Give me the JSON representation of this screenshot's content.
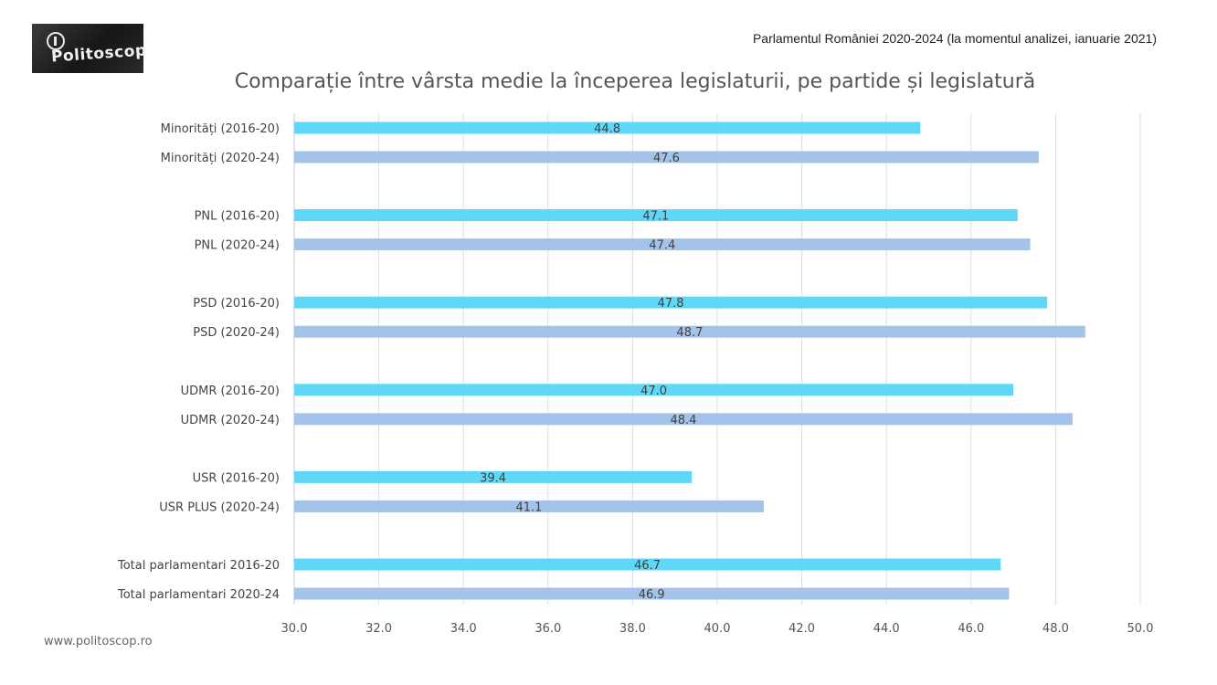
{
  "header": {
    "logo_text": "Politoscop",
    "source": "Parlamentul României 2020-2024 (la momentul analizei, ianuarie 2021)"
  },
  "footer": {
    "website": "www.politoscop.ro"
  },
  "chart_data": {
    "type": "bar",
    "orientation": "horizontal",
    "title": "Comparație între vârsta medie la începerea legislaturii, pe partide și legislatură",
    "xlabel": "",
    "ylabel": "",
    "xlim": [
      30,
      50
    ],
    "x_ticks": [
      "30.0",
      "32.0",
      "34.0",
      "36.0",
      "38.0",
      "40.0",
      "42.0",
      "44.0",
      "46.0",
      "48.0",
      "50.0"
    ],
    "grid": "vertical",
    "legend": "none",
    "colors": {
      "2016-20": "#5fd7f7",
      "2020-24": "#a3c4e8"
    },
    "groups": [
      {
        "bars": [
          {
            "label": "Minorități (2016-20)",
            "value": 44.8,
            "period": "2016-20"
          },
          {
            "label": "Minorități (2020-24)",
            "value": 47.6,
            "period": "2020-24"
          }
        ]
      },
      {
        "bars": [
          {
            "label": "PNL (2016-20)",
            "value": 47.1,
            "period": "2016-20"
          },
          {
            "label": "PNL (2020-24)",
            "value": 47.4,
            "period": "2020-24"
          }
        ]
      },
      {
        "bars": [
          {
            "label": "PSD (2016-20)",
            "value": 47.8,
            "period": "2016-20"
          },
          {
            "label": "PSD (2020-24)",
            "value": 48.7,
            "period": "2020-24"
          }
        ]
      },
      {
        "bars": [
          {
            "label": "UDMR (2016-20)",
            "value": 47.0,
            "period": "2016-20"
          },
          {
            "label": "UDMR (2020-24)",
            "value": 48.4,
            "period": "2020-24"
          }
        ]
      },
      {
        "bars": [
          {
            "label": "USR (2016-20)",
            "value": 39.4,
            "period": "2016-20"
          },
          {
            "label": "USR PLUS (2020-24)",
            "value": 41.1,
            "period": "2020-24"
          }
        ]
      },
      {
        "bars": [
          {
            "label": "Total parlamentari 2016-20",
            "value": 46.7,
            "period": "2016-20"
          },
          {
            "label": "Total parlamentari 2020-24",
            "value": 46.9,
            "period": "2020-24"
          }
        ]
      }
    ]
  }
}
